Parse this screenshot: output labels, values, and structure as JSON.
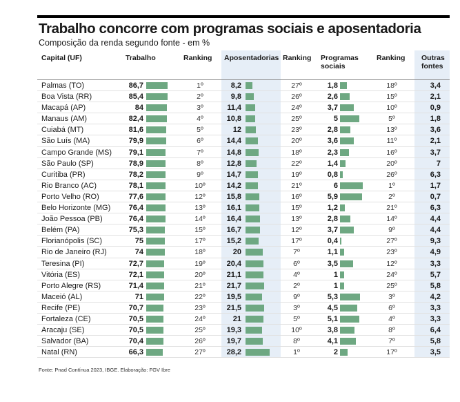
{
  "title": "Trabalho concorre com programas sociais e aposentadoria",
  "subtitle": "Composição da renda segundo fonte - em %",
  "headers": {
    "capital": "Capital (UF)",
    "trabalho": "Trabalho",
    "ranking1": "Ranking",
    "aposentadorias": "Aposentadorias",
    "ranking2": "Ranking",
    "programas_line1": "Programas",
    "programas_line2": "sociais",
    "ranking3": "Ranking",
    "outras_line1": "Outras",
    "outras_line2": "fontes"
  },
  "rows": [
    {
      "capital": "Palmas (TO)",
      "trabalho": "86,7",
      "r1": "1º",
      "apos": "8,2",
      "r2": "27º",
      "prog": "1,8",
      "r3": "18º",
      "outras": "3,4"
    },
    {
      "capital": "Boa Vista (RR)",
      "trabalho": "85,4",
      "r1": "2º",
      "apos": "9,8",
      "r2": "26º",
      "prog": "2,6",
      "r3": "15º",
      "outras": "2,1"
    },
    {
      "capital": "Macapá (AP)",
      "trabalho": "84",
      "r1": "3º",
      "apos": "11,4",
      "r2": "24º",
      "prog": "3,7",
      "r3": "10º",
      "outras": "0,9"
    },
    {
      "capital": "Manaus (AM)",
      "trabalho": "82,4",
      "r1": "4º",
      "apos": "10,8",
      "r2": "25º",
      "prog": "5",
      "r3": "5º",
      "outras": "1,8"
    },
    {
      "capital": "Cuiabá (MT)",
      "trabalho": "81,6",
      "r1": "5º",
      "apos": "12",
      "r2": "23º",
      "prog": "2,8",
      "r3": "13º",
      "outras": "3,6"
    },
    {
      "capital": "São Luís (MA)",
      "trabalho": "79,9",
      "r1": "6º",
      "apos": "14,4",
      "r2": "20º",
      "prog": "3,6",
      "r3": "11º",
      "outras": "2,1"
    },
    {
      "capital": "Campo Grande (MS)",
      "trabalho": "79,1",
      "r1": "7º",
      "apos": "14,8",
      "r2": "18º",
      "prog": "2,3",
      "r3": "16º",
      "outras": "3,7"
    },
    {
      "capital": "São Paulo (SP)",
      "trabalho": "78,9",
      "r1": "8º",
      "apos": "12,8",
      "r2": "22º",
      "prog": "1,4",
      "r3": "20º",
      "outras": "7"
    },
    {
      "capital": "Curitiba (PR)",
      "trabalho": "78,2",
      "r1": "9º",
      "apos": "14,7",
      "r2": "19º",
      "prog": "0,8",
      "r3": "26º",
      "outras": "6,3"
    },
    {
      "capital": "Rio Branco (AC)",
      "trabalho": "78,1",
      "r1": "10º",
      "apos": "14,2",
      "r2": "21º",
      "prog": "6",
      "r3": "1º",
      "outras": "1,7"
    },
    {
      "capital": "Porto Velho (RO)",
      "trabalho": "77,6",
      "r1": "12º",
      "apos": "15,8",
      "r2": "16º",
      "prog": "5,9",
      "r3": "2º",
      "outras": "0,7"
    },
    {
      "capital": "Belo Horizonte (MG)",
      "trabalho": "76,4",
      "r1": "13º",
      "apos": "16,1",
      "r2": "15º",
      "prog": "1,2",
      "r3": "21º",
      "outras": "6,3"
    },
    {
      "capital": "João Pessoa (PB)",
      "trabalho": "76,4",
      "r1": "14º",
      "apos": "16,4",
      "r2": "13º",
      "prog": "2,8",
      "r3": "14º",
      "outras": "4,4"
    },
    {
      "capital": "Belém (PA)",
      "trabalho": "75,3",
      "r1": "15º",
      "apos": "16,7",
      "r2": "12º",
      "prog": "3,7",
      "r3": "9º",
      "outras": "4,4"
    },
    {
      "capital": "Florianópolis (SC)",
      "trabalho": "75",
      "r1": "17º",
      "apos": "15,2",
      "r2": "17º",
      "prog": "0,4",
      "r3": "27º",
      "outras": "9,3"
    },
    {
      "capital": "Rio de Janeiro (RJ)",
      "trabalho": "74",
      "r1": "18º",
      "apos": "20",
      "r2": "7º",
      "prog": "1,1",
      "r3": "23º",
      "outras": "4,9"
    },
    {
      "capital": "Teresina (PI)",
      "trabalho": "72,7",
      "r1": "19º",
      "apos": "20,4",
      "r2": "6º",
      "prog": "3,5",
      "r3": "12º",
      "outras": "3,3"
    },
    {
      "capital": "Vitória (ES)",
      "trabalho": "72,1",
      "r1": "20º",
      "apos": "21,1",
      "r2": "4º",
      "prog": "1",
      "r3": "24º",
      "outras": "5,7"
    },
    {
      "capital": "Porto Alegre (RS)",
      "trabalho": "71,4",
      "r1": "21º",
      "apos": "21,7",
      "r2": "2º",
      "prog": "1",
      "r3": "25º",
      "outras": "5,8"
    },
    {
      "capital": "Maceió (AL)",
      "trabalho": "71",
      "r1": "22º",
      "apos": "19,5",
      "r2": "9º",
      "prog": "5,3",
      "r3": "3º",
      "outras": "4,2"
    },
    {
      "capital": "Recife (PE)",
      "trabalho": "70,7",
      "r1": "23º",
      "apos": "21,5",
      "r2": "3º",
      "prog": "4,5",
      "r3": "6º",
      "outras": "3,3"
    },
    {
      "capital": "Fortaleza (CE)",
      "trabalho": "70,5",
      "r1": "24º",
      "apos": "21",
      "r2": "5º",
      "prog": "5,1",
      "r3": "4º",
      "outras": "3,3"
    },
    {
      "capital": "Aracaju (SE)",
      "trabalho": "70,5",
      "r1": "25º",
      "apos": "19,3",
      "r2": "10º",
      "prog": "3,8",
      "r3": "8º",
      "outras": "6,4"
    },
    {
      "capital": "Salvador (BA)",
      "trabalho": "70,4",
      "r1": "26º",
      "apos": "19,7",
      "r2": "8º",
      "prog": "4,1",
      "r3": "7º",
      "outras": "5,8"
    },
    {
      "capital": "Natal (RN)",
      "trabalho": "66,3",
      "r1": "27º",
      "apos": "28,2",
      "r2": "1º",
      "prog": "2",
      "r3": "17º",
      "outras": "3,5"
    }
  ],
  "footer": "Fonte: Pnad Contínua 2023, IBGE. Elaboração: FGV Ibre",
  "colors": {
    "bar": "#6ea882",
    "shade": "#e6eef7"
  }
}
